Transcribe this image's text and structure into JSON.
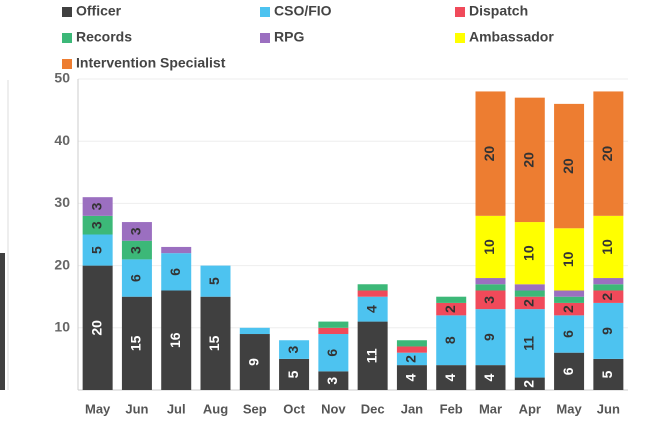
{
  "chart_data": {
    "type": "stacked_bar",
    "categories": [
      "May",
      "Jun",
      "Jul",
      "Aug",
      "Sep",
      "Oct",
      "Nov",
      "Dec",
      "Jan",
      "Feb",
      "Mar",
      "Apr",
      "May",
      "Jun"
    ],
    "series": [
      {
        "name": "Officer",
        "color": "#404040",
        "values": [
          20,
          15,
          16,
          15,
          9,
          5,
          3,
          11,
          4,
          4,
          4,
          2,
          6,
          5
        ]
      },
      {
        "name": "CSO/FIO",
        "color": "#4dc3f0",
        "values": [
          5,
          6,
          6,
          5,
          1,
          3,
          6,
          4,
          2,
          8,
          9,
          11,
          6,
          9
        ]
      },
      {
        "name": "Dispatch",
        "color": "#f04a5a",
        "values": [
          0,
          0,
          0,
          0,
          0,
          0,
          1,
          1,
          1,
          2,
          3,
          2,
          2,
          2
        ]
      },
      {
        "name": "Records",
        "color": "#3cb878",
        "values": [
          3,
          3,
          0,
          0,
          0,
          0,
          1,
          1,
          1,
          1,
          1,
          1,
          1,
          1
        ]
      },
      {
        "name": "RPG",
        "color": "#9b6fc0",
        "values": [
          3,
          3,
          1,
          0,
          0,
          0,
          0,
          0,
          0,
          0,
          1,
          1,
          1,
          1
        ]
      },
      {
        "name": "Ambassador",
        "color": "#ffff00",
        "values": [
          0,
          0,
          0,
          0,
          0,
          0,
          0,
          0,
          0,
          0,
          10,
          10,
          10,
          10
        ]
      },
      {
        "name": "Intervention Specialist",
        "color": "#ed7d31",
        "values": [
          0,
          0,
          0,
          0,
          0,
          0,
          0,
          0,
          0,
          0,
          20,
          20,
          20,
          20
        ]
      }
    ],
    "ylim": [
      0,
      50
    ],
    "yticks": [
      10,
      20,
      30,
      40,
      50
    ],
    "grid": true
  }
}
